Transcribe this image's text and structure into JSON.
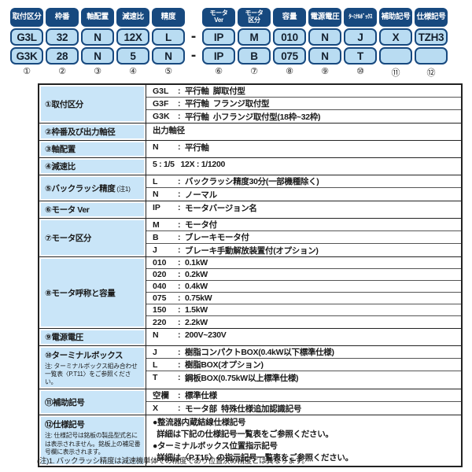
{
  "code_grid": {
    "separator": "-",
    "columns": [
      {
        "header": [
          "取付区分"
        ],
        "row1": "G3L",
        "row2": "G3K",
        "num": "①"
      },
      {
        "header": [
          "枠番"
        ],
        "row1": "32",
        "row2": "28",
        "num": "②"
      },
      {
        "header": [
          "軸配置"
        ],
        "row1": "N",
        "row2": "N",
        "num": "③"
      },
      {
        "header": [
          "減速比"
        ],
        "row1": "12X",
        "row2": "5",
        "num": "④"
      },
      {
        "header": [
          "精度"
        ],
        "row1": "L",
        "row2": "N",
        "num": "⑤"
      },
      {
        "header": [
          "モータ",
          "Ver"
        ],
        "row1": "IP",
        "row2": "IP",
        "num": "⑥"
      },
      {
        "header": [
          "モータ",
          "区分"
        ],
        "row1": "M",
        "row2": "B",
        "num": "⑦"
      },
      {
        "header": [
          "容量"
        ],
        "row1": "010",
        "row2": "075",
        "num": "⑧"
      },
      {
        "header": [
          "電源電圧"
        ],
        "row1": "N",
        "row2": "N",
        "num": "⑨"
      },
      {
        "header": [
          "ﾀｰﾐﾅﾙﾎﾞｯｸｽ"
        ],
        "small": true,
        "row1": "J",
        "row2": "T",
        "num": "⑩"
      },
      {
        "header": [
          "補助記号"
        ],
        "row1": "X",
        "row2": "",
        "num": "⑪"
      },
      {
        "header": [
          "仕様記号"
        ],
        "row1": "TZH3",
        "row2": "",
        "num": "⑫"
      }
    ]
  },
  "table": {
    "colon": ":",
    "rows": [
      {
        "label": "①取付区分",
        "entries": [
          {
            "code": "G3L",
            "desc": "平行軸  脚取付型"
          },
          {
            "code": "G3F",
            "desc": "平行軸  フランジ取付型"
          },
          {
            "code": "G3K",
            "desc": "平行軸  小フランジ取付型(18枠~32枠)"
          }
        ]
      },
      {
        "label": "②枠番及び出力軸径",
        "entries": [
          {
            "text": "出力軸径"
          }
        ]
      },
      {
        "label": "③軸配置",
        "entries": [
          {
            "code": "N",
            "desc": "平行軸"
          }
        ]
      },
      {
        "label": "④減速比",
        "entries": [
          {
            "text": "5 : 1/5   12X : 1/1200"
          }
        ]
      },
      {
        "label": "⑤バックラッシ精度",
        "suffix": "(注1)",
        "entries": [
          {
            "code": "L",
            "desc": "バックラッシ精度30分(一部機種除く)"
          },
          {
            "code": "N",
            "desc": "ノーマル"
          }
        ]
      },
      {
        "label": "⑥モータ Ver",
        "entries": [
          {
            "code": "IP",
            "desc": "モータバージョン名"
          }
        ]
      },
      {
        "label": "⑦モータ区分",
        "entries": [
          {
            "code": "M",
            "desc": "モータ付"
          },
          {
            "code": "B",
            "desc": "ブレーキモータ付"
          },
          {
            "code": "J",
            "desc": "ブレーキ手動解放装置付(オプション)"
          }
        ]
      },
      {
        "label": "⑧モータ呼称と容量",
        "compact": true,
        "entries": [
          {
            "code": "010",
            "desc": "0.1kW"
          },
          {
            "code": "020",
            "desc": "0.2kW"
          },
          {
            "code": "040",
            "desc": "0.4kW"
          },
          {
            "code": "075",
            "desc": "0.75kW"
          },
          {
            "code": "150",
            "desc": "1.5kW"
          },
          {
            "code": "220",
            "desc": "2.2kW"
          }
        ]
      },
      {
        "label": "⑨電源電圧",
        "entries": [
          {
            "code": "N",
            "desc": "200V~230V"
          }
        ]
      },
      {
        "label": "⑩ターミナルボックス",
        "note": "注: ターミナルボックス組み合わせ一覧表〈P.T11〉をご参照ください。",
        "entries": [
          {
            "code": "J",
            "desc": "樹脂コンパクトBOX(0.4kW以下標準仕様)"
          },
          {
            "code": "L",
            "desc": "樹脂BOX(オプション)"
          },
          {
            "code": "T",
            "desc": "鋼板BOX(0.75kW以上標準仕様)"
          }
        ]
      },
      {
        "label": "⑪補助記号",
        "entries": [
          {
            "code": "空欄",
            "desc": "標準仕様"
          },
          {
            "code": "X",
            "desc": "モータ部  特殊仕様追加認識記号"
          }
        ]
      },
      {
        "label": "⑫仕様記号",
        "note": "注: 仕様記号は銘板の製品型式名には表示されません。銘板上の補足番号欄に表示されます。",
        "entries": [
          {
            "lines": [
              "●整流器内蔵結線仕様記号",
              "  詳細は下記の仕様記号一覧表をご参照ください。",
              "●ターミナルボックス位置指示記号",
              "  詳細は〈P.T15〉の指示記号一覧表をご参照ください。"
            ]
          }
        ]
      }
    ]
  },
  "footnote": "(注)1. バックラッシ精度は減速機単体での精度であり位置決め精度とは異なります。"
}
